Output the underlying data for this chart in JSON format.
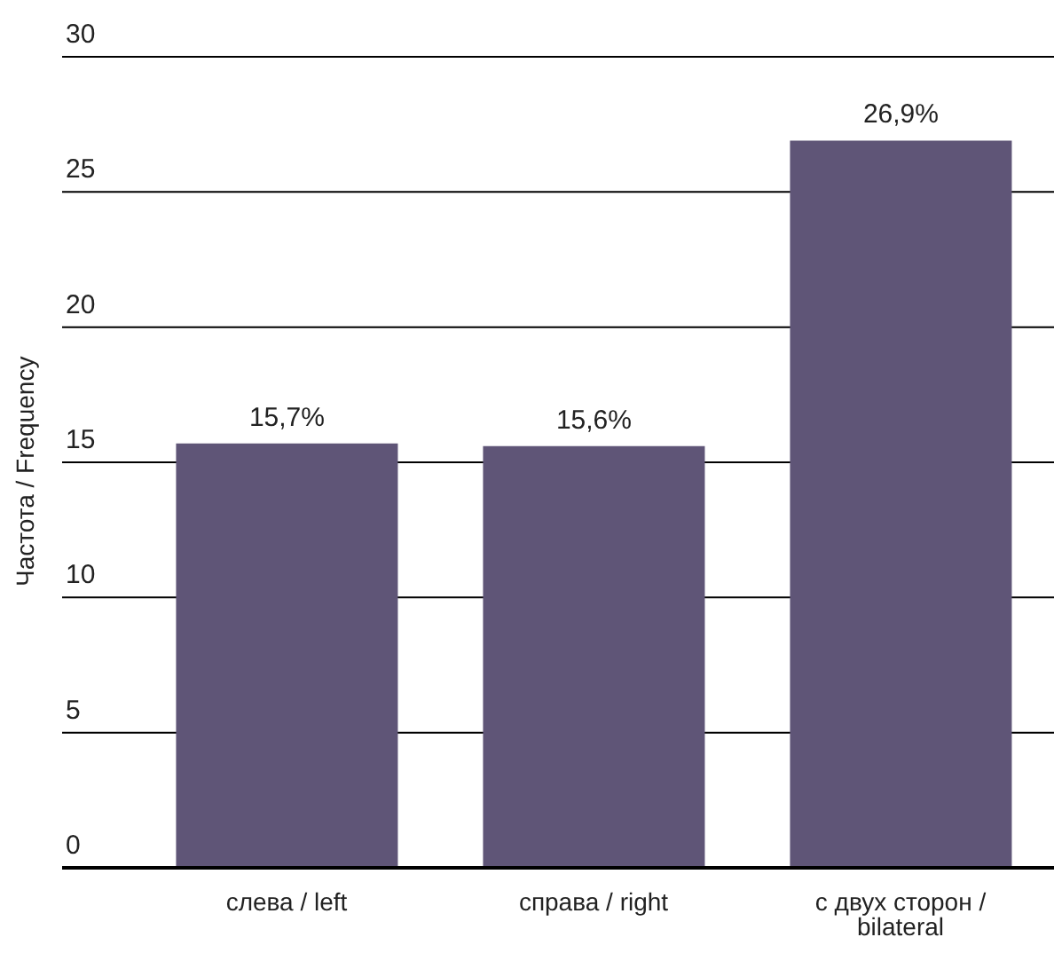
{
  "chart_data": {
    "type": "bar",
    "ylabel": "Частота / Frequency",
    "categories": [
      "слева / left",
      "справа / right",
      "с двух сторон / bilateral"
    ],
    "values": [
      15.7,
      15.6,
      26.9
    ],
    "color": "#5f5577",
    "value_labels": [
      "15,7%",
      "15,6%",
      "26,9%"
    ],
    "ylim": [
      0,
      30
    ],
    "yticks": [
      0,
      5,
      10,
      15,
      20,
      25,
      30
    ],
    "grid": "y"
  }
}
